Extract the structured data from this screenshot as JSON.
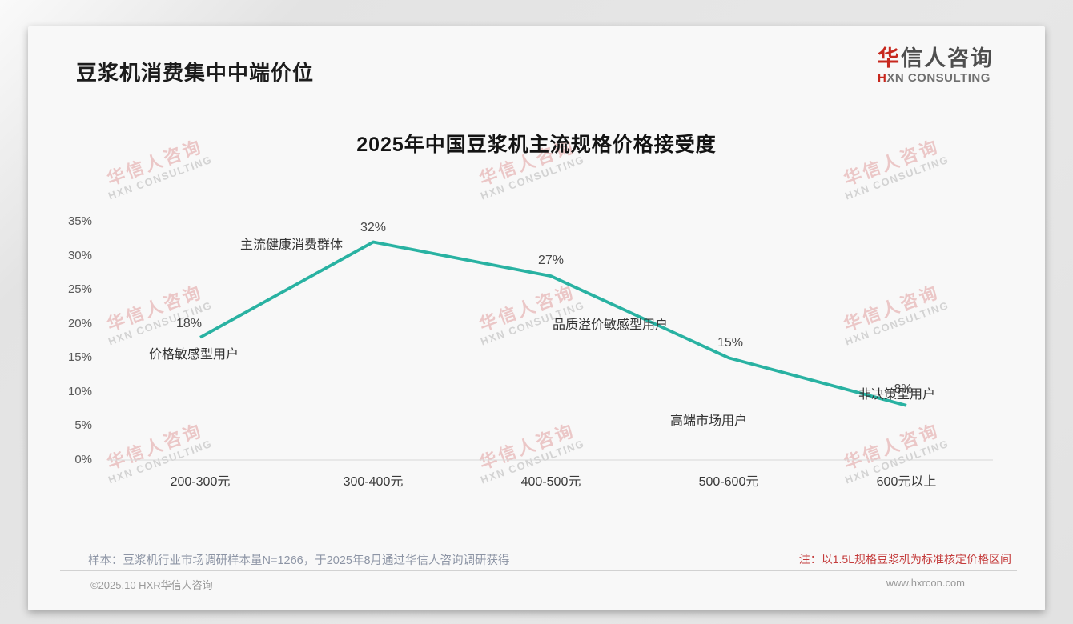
{
  "page": {
    "title": "豆浆机消费集中中端价位",
    "logo": {
      "cn_first": "华",
      "cn_rest": "信人咨询",
      "en_first": "H",
      "en_rest": "XN CONSULTING"
    },
    "watermark": {
      "cn": "华信人咨询",
      "en": "HXN CONSULTING"
    },
    "sample_note": "样本：豆浆机行业市场调研样本量N=1266，于2025年8月通过华信人咨询调研获得",
    "price_note": "注：以1.5L规格豆浆机为标准核定价格区间",
    "footer": {
      "copyright": "©2025.10 HXR华信人咨询",
      "website": "www.hxrcon.com"
    }
  },
  "chart_data": {
    "type": "line",
    "title": "2025年中国豆浆机主流规格价格接受度",
    "categories": [
      "200-300元",
      "300-400元",
      "400-500元",
      "500-600元",
      "600元以上"
    ],
    "values": [
      18,
      32,
      27,
      15,
      8
    ],
    "value_labels": [
      "18%",
      "32%",
      "27%",
      "15%",
      "8%"
    ],
    "annotations": [
      "价格敏感型用户",
      "主流健康消费群体",
      "品质溢价敏感型用户",
      "高端市场用户",
      "非决策型用户"
    ],
    "y_ticks": [
      "0%",
      "5%",
      "10%",
      "15%",
      "20%",
      "25%",
      "30%",
      "35%"
    ],
    "y_tick_values": [
      0,
      5,
      10,
      15,
      20,
      25,
      30,
      35
    ],
    "ylim": [
      0,
      35
    ],
    "xlabel": "",
    "ylabel": "",
    "grid": false,
    "legend": null,
    "line_color": "#29b2a2",
    "axis_color": "#d9d9d9"
  }
}
